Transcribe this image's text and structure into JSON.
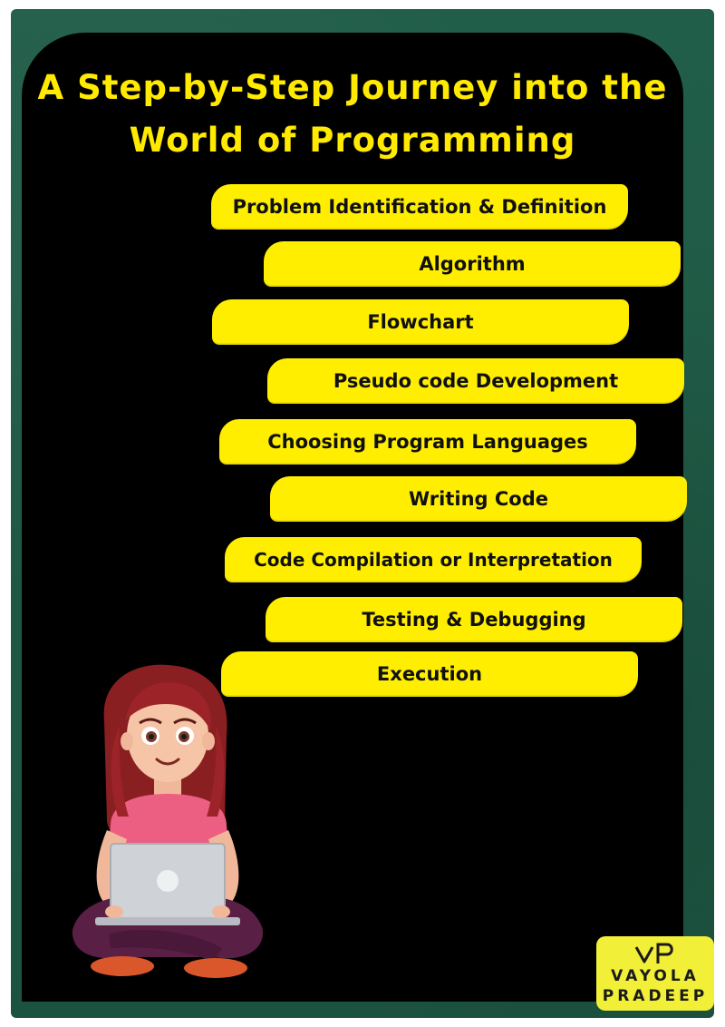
{
  "title": {
    "line1": "A Step-by-Step Journey into the",
    "line2": "World of Programming"
  },
  "steps": [
    {
      "label": "Problem Identification & Definition"
    },
    {
      "label": "Algorithm"
    },
    {
      "label": "Flowchart"
    },
    {
      "label": "Pseudo code Development"
    },
    {
      "label": "Choosing Program Languages"
    },
    {
      "label": "Writing Code"
    },
    {
      "label": "Code Compilation or Interpretation"
    },
    {
      "label": "Testing & Debugging"
    },
    {
      "label": "Execution"
    }
  ],
  "illustration": {
    "icon": "girl-with-laptop-icon"
  },
  "logo": {
    "line1": "VAYOLA",
    "line2": "PRADEEP",
    "icon": "vp-logo-icon"
  },
  "colors": {
    "frame": "#1f5a46",
    "board": "#000000",
    "title": "#ffea00",
    "step_fill": "#ffee00",
    "step_text": "#101010",
    "logo_bg": "#f2ef38"
  }
}
